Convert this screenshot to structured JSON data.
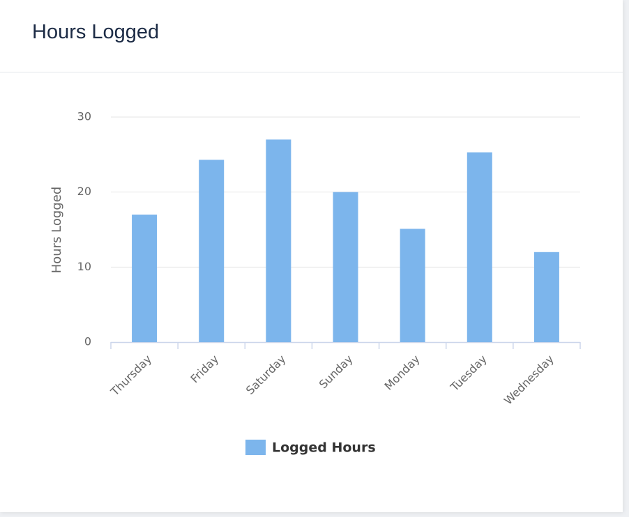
{
  "header": {
    "title": "Hours Logged"
  },
  "chart_data": {
    "type": "bar",
    "y_label": "Hours Logged",
    "categories": [
      "Thursday",
      "Friday",
      "Saturday",
      "Sunday",
      "Monday",
      "Tuesday",
      "Wednesday"
    ],
    "series": [
      {
        "name": "Logged Hours",
        "color": "#7cb5ec",
        "values": [
          17,
          24.3,
          27,
          20,
          15.1,
          25.3,
          12
        ]
      }
    ],
    "ylim": [
      0,
      30
    ],
    "yticks": [
      0,
      10,
      20,
      30
    ],
    "grid": true,
    "legend": "bottom"
  }
}
